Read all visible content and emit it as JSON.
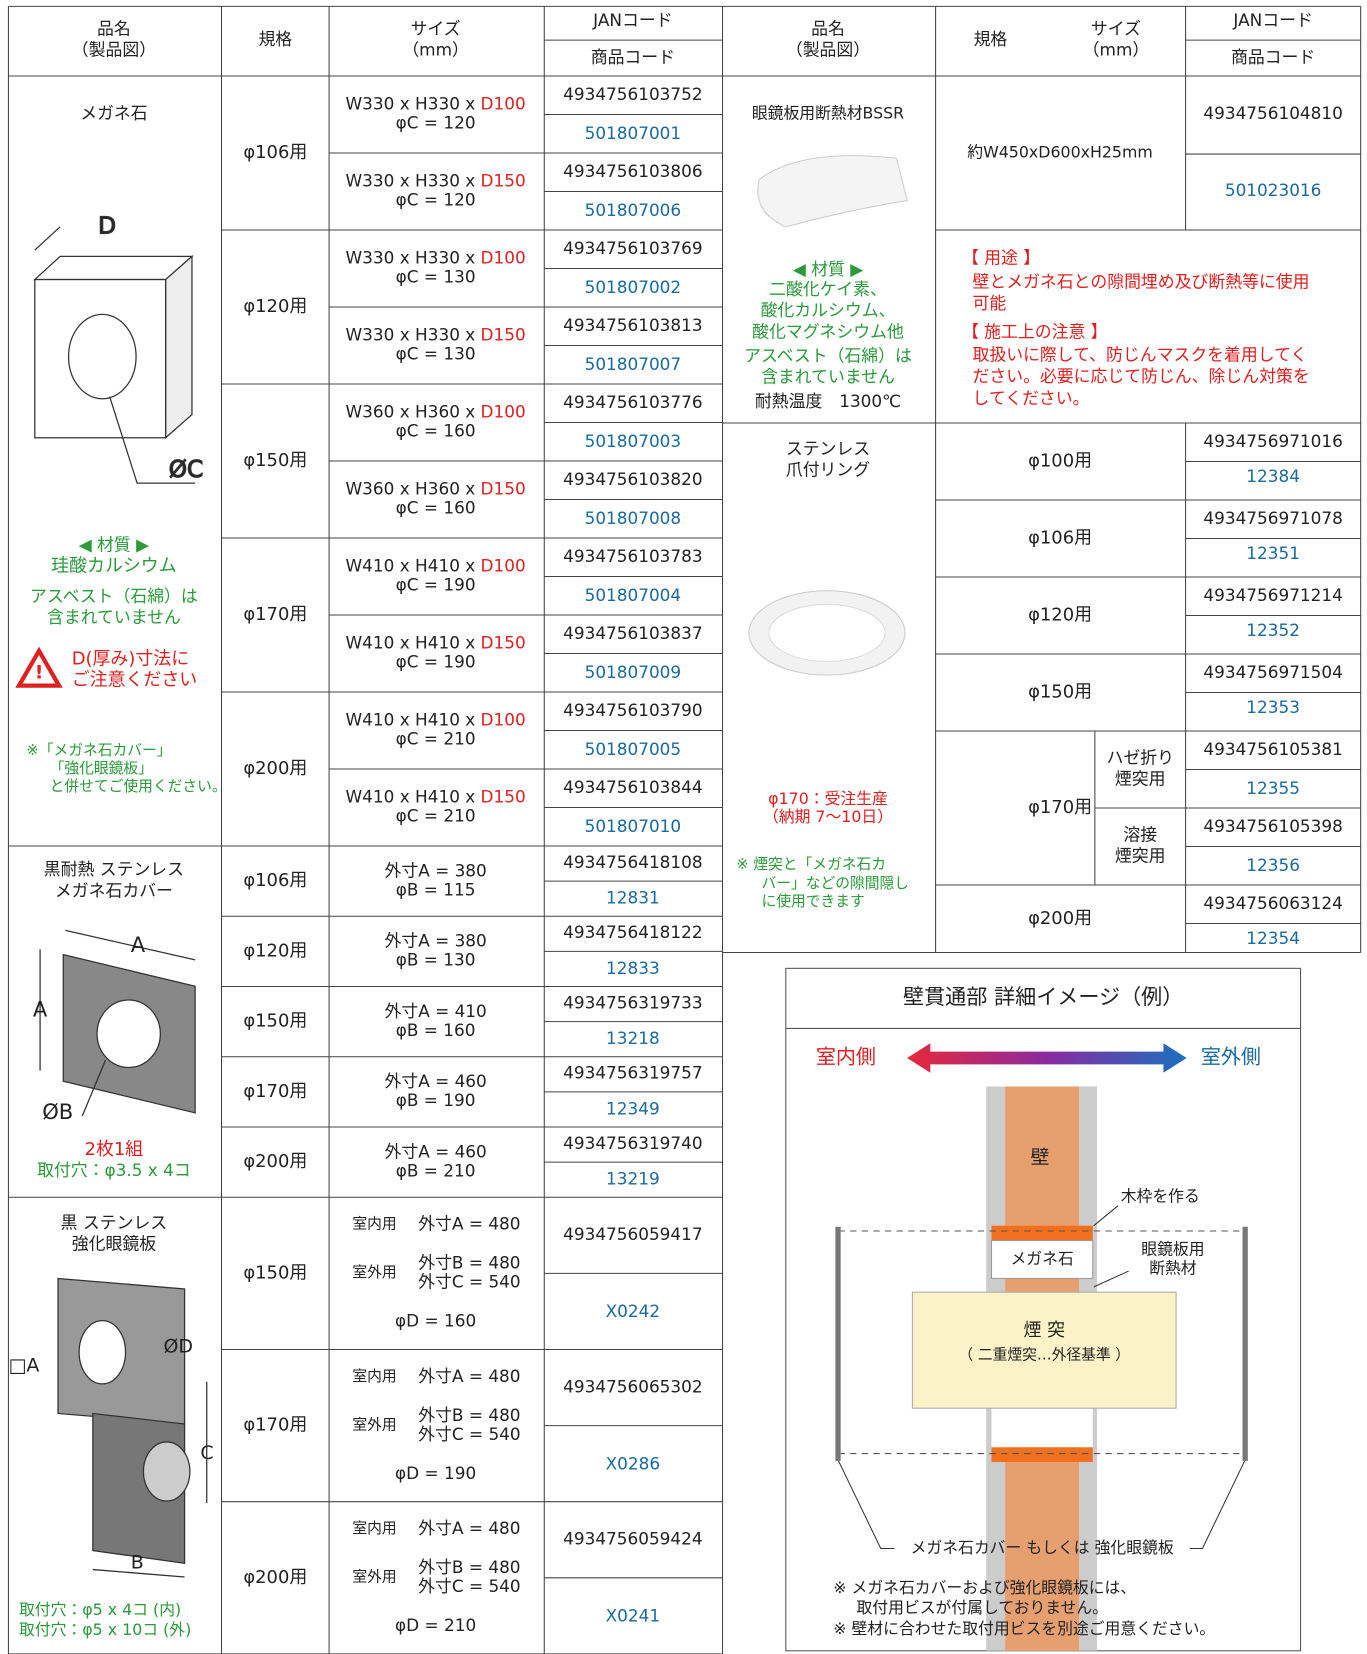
{
  "header": {
    "name": "品名",
    "name_sub": "（製品図）",
    "spec": "規格",
    "size": "サイズ",
    "size_sub": "（mm）",
    "jan": "JANコード",
    "code": "商品コード"
  },
  "megane": {
    "name": "メガネ石",
    "label_d": "D",
    "label_c": "ØC",
    "material_head": "◀ 材質 ▶",
    "material": "珪酸カルシウム",
    "asbestos": [
      "アスベスト（石綿）は",
      "含まれていません"
    ],
    "warning": [
      "D(厚み)寸法に",
      "ご注意ください"
    ],
    "note": [
      "※「メガネ石カバー」",
      "「強化眼鏡板」",
      "と併せてご使用ください。"
    ],
    "groups": [
      {
        "spec": "φ106用",
        "items": [
          {
            "size": "W330 x H330 x",
            "d": "D100",
            "c": "φC = 120",
            "jan": "4934756103752",
            "code": "501807001"
          },
          {
            "size": "W330 x H330 x",
            "d": "D150",
            "c": "φC = 120",
            "jan": "4934756103806",
            "code": "501807006"
          }
        ]
      },
      {
        "spec": "φ120用",
        "items": [
          {
            "size": "W330 x H330 x",
            "d": "D100",
            "c": "φC = 130",
            "jan": "4934756103769",
            "code": "501807002"
          },
          {
            "size": "W330 x H330 x",
            "d": "D150",
            "c": "φC = 130",
            "jan": "4934756103813",
            "code": "501807007"
          }
        ]
      },
      {
        "spec": "φ150用",
        "items": [
          {
            "size": "W360 x H360 x",
            "d": "D100",
            "c": "φC = 160",
            "jan": "4934756103776",
            "code": "501807003"
          },
          {
            "size": "W360 x H360 x",
            "d": "D150",
            "c": "φC = 160",
            "jan": "4934756103820",
            "code": "501807008"
          }
        ]
      },
      {
        "spec": "φ170用",
        "items": [
          {
            "size": "W410 x H410 x",
            "d": "D100",
            "c": "φC = 190",
            "jan": "4934756103783",
            "code": "501807004"
          },
          {
            "size": "W410 x H410 x",
            "d": "D150",
            "c": "φC = 190",
            "jan": "4934756103837",
            "code": "501807009"
          }
        ]
      },
      {
        "spec": "φ200用",
        "items": [
          {
            "size": "W410 x H410 x",
            "d": "D100",
            "c": "φC = 210",
            "jan": "4934756103790",
            "code": "501807005"
          },
          {
            "size": "W410 x H410 x",
            "d": "D150",
            "c": "φC = 210",
            "jan": "4934756103844",
            "code": "501807010"
          }
        ]
      }
    ]
  },
  "cover": {
    "name": [
      "黒耐熱 ステンレス",
      "メガネ石カバー"
    ],
    "label_a": "A",
    "label_b": "ØB",
    "set": "2枚1組",
    "holes": "取付穴：φ3.5 x 4コ",
    "items": [
      {
        "spec": "φ106用",
        "a": "外寸A = 380",
        "b": "φB = 115",
        "jan": "4934756418108",
        "code": "12831"
      },
      {
        "spec": "φ120用",
        "a": "外寸A = 380",
        "b": "φB = 130",
        "jan": "4934756418122",
        "code": "12833"
      },
      {
        "spec": "φ150用",
        "a": "外寸A = 410",
        "b": "φB = 160",
        "jan": "4934756319733",
        "code": "13218"
      },
      {
        "spec": "φ170用",
        "a": "外寸A = 460",
        "b": "φB = 190",
        "jan": "4934756319757",
        "code": "12349"
      },
      {
        "spec": "φ200用",
        "a": "外寸A = 460",
        "b": "φB = 210",
        "jan": "4934756319740",
        "code": "13219"
      }
    ]
  },
  "plate": {
    "name": [
      "黒 ステンレス",
      "強化眼鏡板"
    ],
    "label_a": "□A",
    "label_d": "ØD",
    "label_c": "C",
    "label_b": "B",
    "holes": [
      "取付穴：φ5 x  4コ (内)",
      "取付穴：φ5 x 10コ (外)"
    ],
    "items": [
      {
        "spec": "φ150用",
        "indoor": "室内用",
        "a": "外寸A = 480",
        "outdoor": "室外用",
        "b": "外寸B = 480",
        "c": "外寸C = 540",
        "d": "φD = 160",
        "jan": "4934756059417",
        "code": "X0242"
      },
      {
        "spec": "φ170用",
        "indoor": "室内用",
        "a": "外寸A = 480",
        "outdoor": "室外用",
        "b": "外寸B = 480",
        "c": "外寸C = 540",
        "d": "φD = 190",
        "jan": "4934756065302",
        "code": "X0286"
      },
      {
        "spec": "φ200用",
        "indoor": "室内用",
        "a": "外寸A = 480",
        "outdoor": "室外用",
        "b": "外寸B = 480",
        "c": "外寸C = 540",
        "d": "φD = 210",
        "jan": "4934756059424",
        "code": "X0241"
      }
    ]
  },
  "bssr": {
    "name": "眼鏡板用断熱材BSSR",
    "size": "約W450xD600xH25mm",
    "jan": "4934756104810",
    "code": "501023016",
    "material_head": "◀ 材質 ▶",
    "materials": [
      "二酸化ケイ素、",
      "酸化カルシウム、",
      "酸化マグネシウム他"
    ],
    "asbestos": [
      "アスベスト（石綿）は",
      "含まれていません"
    ],
    "heat": "耐熱温度　1300℃",
    "usage_head": "【 用途 】",
    "usage": [
      "壁とメガネ石との隙間埋め及び断熱等に使用",
      "可能"
    ],
    "caution_head": "【 施工上の注意 】",
    "caution": [
      "取扱いに際して、防じんマスクを着用してく",
      "ださい。必要に応じて防じん、除じん対策を",
      "してください。"
    ]
  },
  "ring": {
    "name": [
      "ステンレス",
      "爪付リング"
    ],
    "order": [
      "φ170：受注生産",
      "（納期 7〜10日）"
    ],
    "note": [
      "※ 煙突と「メガネ石カ",
      "バー」などの隙間隠し",
      "に使用できます"
    ],
    "groups": [
      {
        "spec": "φ100用",
        "jan": "4934756971016",
        "code": "12384"
      },
      {
        "spec": "φ106用",
        "jan": "4934756971078",
        "code": "12351"
      },
      {
        "spec": "φ120用",
        "jan": "4934756971214",
        "code": "12352"
      },
      {
        "spec": "φ150用",
        "jan": "4934756971504",
        "code": "12353"
      },
      {
        "spec": "φ170用",
        "subs": [
          {
            "type": [
              "ハゼ折り",
              "煙突用"
            ],
            "jan": "4934756105381",
            "code": "12355"
          },
          {
            "type": [
              "溶接",
              "煙突用"
            ],
            "jan": "4934756105398",
            "code": "12356"
          }
        ]
      },
      {
        "spec": "φ200用",
        "jan": "4934756063124",
        "code": "12354"
      }
    ]
  },
  "detail": {
    "title": "壁貫通部 詳細イメージ（例）",
    "indoor": "室内側",
    "outdoor": "室外側",
    "wall": "壁",
    "frame": "木枠を作る",
    "megane": "メガネ石",
    "insulation": [
      "眼鏡板用",
      "断熱材"
    ],
    "chimney": "煙 突",
    "chimney_sub": "（ 二重煙突…外径基準 ）",
    "cover": "メガネ石カバー もしくは 強化眼鏡板",
    "notes": [
      "※ メガネ石カバーおよび強化眼鏡板には、",
      "取付用ビスが付属しておりません。",
      "※ 壁材に合わせた取付用ビスを別途ご用意ください。"
    ]
  }
}
